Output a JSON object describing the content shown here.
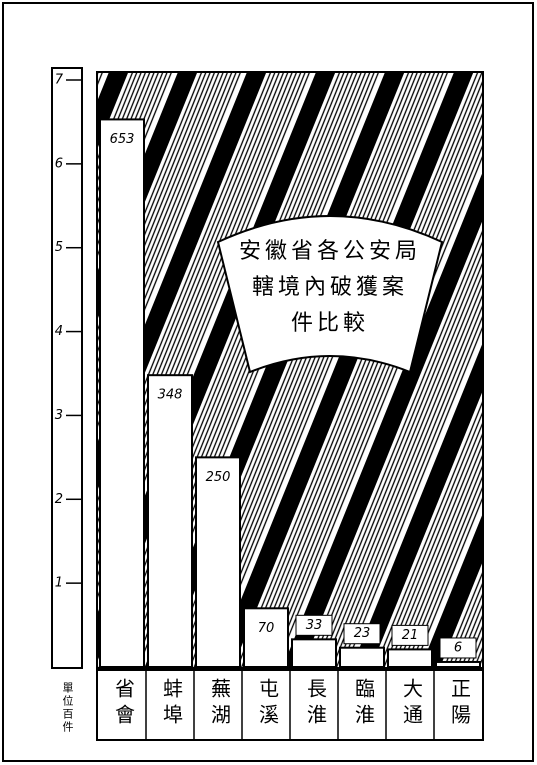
{
  "chart_data": {
    "type": "bar",
    "title": [
      "安徽省各公安局",
      "轄境內破獲案",
      "件比較"
    ],
    "unit_label": "單位百件",
    "categories": [
      "省會",
      "蚌埠",
      "蕪湖",
      "屯溪",
      "長淮",
      "臨淮",
      "大通",
      "正陽"
    ],
    "values": [
      6.53,
      3.48,
      2.5,
      0.7,
      0.33,
      0.23,
      0.21,
      0.06
    ],
    "value_labels": [
      "653",
      "348",
      "250",
      "70",
      "33",
      "23",
      "21",
      "6"
    ],
    "color": "#ffffff",
    "ylim": [
      0,
      7
    ],
    "yticks": [
      1,
      2,
      3,
      4,
      5,
      6,
      7
    ]
  }
}
